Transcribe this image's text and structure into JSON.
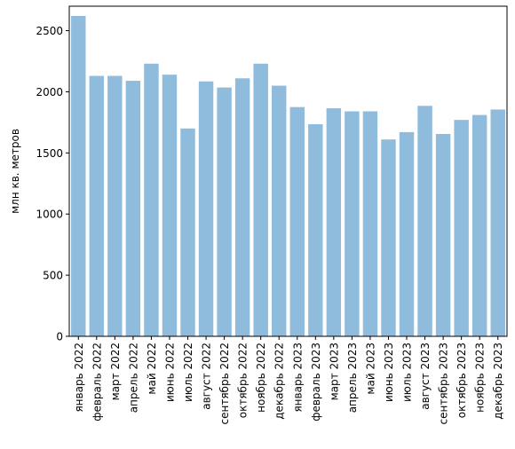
{
  "chart_data": {
    "type": "bar",
    "title": "",
    "xlabel": "",
    "ylabel": "млн кв. метров",
    "ylim": [
      0,
      2700
    ],
    "yticks": [
      0,
      500,
      1000,
      1500,
      2000,
      2500
    ],
    "grid": false,
    "bar_color": "#8fbbdc",
    "categories": [
      "январь 2022",
      "февраль 2022",
      "март 2022",
      "апрель 2022",
      "май 2022",
      "июнь 2022",
      "июль 2022",
      "август 2022",
      "сентябрь 2022",
      "октябрь 2022",
      "ноябрь 2022",
      "декабрь 2022",
      "январь 2023",
      "февраль 2023",
      "март 2023",
      "апрель 2023",
      "май 2023",
      "июнь 2023",
      "июль 2023",
      "август 2023",
      "сентябрь 2023",
      "октябрь 2023",
      "ноябрь 2023",
      "декабрь 2023"
    ],
    "values": [
      2620,
      2130,
      2130,
      2090,
      2230,
      2140,
      1700,
      2085,
      2035,
      2110,
      2230,
      2050,
      1875,
      1735,
      1865,
      1840,
      1840,
      1610,
      1670,
      1885,
      1655,
      1770,
      1810,
      1855
    ]
  }
}
